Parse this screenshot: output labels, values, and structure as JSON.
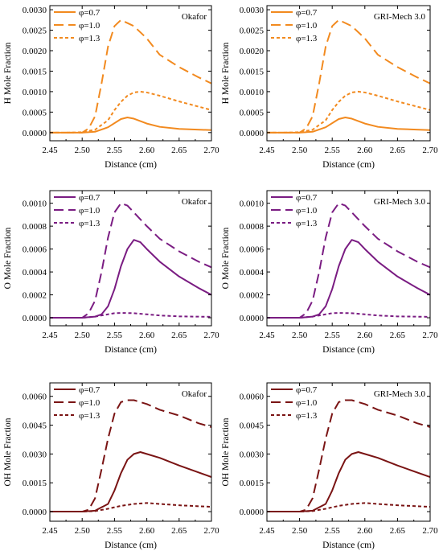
{
  "chart_data": [
    {
      "type": "line",
      "panel": "H",
      "row": 0,
      "col": 0,
      "title": "Okafor",
      "xlabel": "Distance (cm)",
      "ylabel": "H  Mole  Fraction",
      "xlim": [
        2.45,
        2.7
      ],
      "ylim": [
        -0.0002,
        0.0031
      ],
      "xticks": [
        "2.45",
        "2.50",
        "2.55",
        "2.60",
        "2.65",
        "2.70"
      ],
      "yticks": [
        "0.0000",
        "0.0005",
        "0.0010",
        "0.0015",
        "0.0020",
        "0.0025",
        "0.0030"
      ],
      "color": "#f28a1f",
      "legend": "top-left",
      "series": [
        {
          "name": "φ=0.7",
          "style": "solid",
          "x": [
            2.45,
            2.5,
            2.52,
            2.54,
            2.56,
            2.57,
            2.58,
            2.6,
            2.62,
            2.65,
            2.7
          ],
          "y": [
            0,
            0,
            2e-05,
            0.00013,
            0.00033,
            0.00037,
            0.00034,
            0.00022,
            0.00014,
            9e-05,
            6e-05
          ]
        },
        {
          "name": "φ=1.0",
          "style": "dashed",
          "x": [
            2.45,
            2.5,
            2.51,
            2.52,
            2.53,
            2.54,
            2.55,
            2.56,
            2.58,
            2.6,
            2.62,
            2.65,
            2.68,
            2.7
          ],
          "y": [
            0,
            0,
            0.0001,
            0.0004,
            0.0012,
            0.0021,
            0.0026,
            0.00275,
            0.0026,
            0.0023,
            0.0019,
            0.0016,
            0.00135,
            0.0012
          ]
        },
        {
          "name": "φ=1.3",
          "style": "dotted",
          "x": [
            2.45,
            2.48,
            2.5,
            2.52,
            2.54,
            2.55,
            2.56,
            2.57,
            2.58,
            2.59,
            2.6,
            2.62,
            2.65,
            2.7
          ],
          "y": [
            0,
            0,
            1e-05,
            7e-05,
            0.0003,
            0.00055,
            0.00075,
            0.0009,
            0.00098,
            0.001,
            0.00098,
            0.0009,
            0.00076,
            0.00055
          ]
        }
      ]
    },
    {
      "type": "line",
      "panel": "H",
      "row": 0,
      "col": 1,
      "title": "GRI-Mech 3.0",
      "xlabel": "Distance (cm)",
      "ylabel": "H  Mole  Fraction",
      "xlim": [
        2.45,
        2.7
      ],
      "ylim": [
        -0.0002,
        0.0031
      ],
      "xticks": [
        "2.45",
        "2.50",
        "2.55",
        "2.60",
        "2.65",
        "2.70"
      ],
      "yticks": [
        "0.0000",
        "0.0005",
        "0.0010",
        "0.0015",
        "0.0020",
        "0.0025",
        "0.0030"
      ],
      "color": "#f28a1f",
      "legend": "top-left",
      "series": [
        {
          "name": "φ=0.7",
          "style": "solid",
          "x": [
            2.45,
            2.5,
            2.52,
            2.54,
            2.56,
            2.57,
            2.58,
            2.6,
            2.62,
            2.65,
            2.7
          ],
          "y": [
            0,
            0,
            2e-05,
            0.00013,
            0.00033,
            0.00037,
            0.00034,
            0.00022,
            0.00014,
            9e-05,
            6e-05
          ]
        },
        {
          "name": "φ=1.0",
          "style": "dashed",
          "x": [
            2.45,
            2.5,
            2.51,
            2.52,
            2.53,
            2.54,
            2.55,
            2.56,
            2.58,
            2.6,
            2.62,
            2.65,
            2.68,
            2.7
          ],
          "y": [
            0,
            0,
            0.0001,
            0.0004,
            0.0012,
            0.0021,
            0.0026,
            0.00275,
            0.0026,
            0.0023,
            0.0019,
            0.0016,
            0.00135,
            0.0012
          ]
        },
        {
          "name": "φ=1.3",
          "style": "dotted",
          "x": [
            2.45,
            2.48,
            2.5,
            2.52,
            2.54,
            2.55,
            2.56,
            2.57,
            2.58,
            2.59,
            2.6,
            2.62,
            2.65,
            2.7
          ],
          "y": [
            0,
            0,
            1e-05,
            7e-05,
            0.0003,
            0.00055,
            0.00075,
            0.0009,
            0.00098,
            0.001,
            0.00098,
            0.0009,
            0.00076,
            0.00055
          ]
        }
      ]
    },
    {
      "type": "line",
      "panel": "O",
      "row": 1,
      "col": 0,
      "title": "Okafor",
      "xlabel": "Distance (cm)",
      "ylabel": "O  Mole  Fraction",
      "xlim": [
        2.45,
        2.7
      ],
      "ylim": [
        -7e-05,
        0.00111
      ],
      "xticks": [
        "2.45",
        "2.50",
        "2.55",
        "2.60",
        "2.65",
        "2.70"
      ],
      "yticks": [
        "0.0000",
        "0.0002",
        "0.0004",
        "0.0006",
        "0.0008",
        "0.0010"
      ],
      "color": "#7a1c82",
      "legend": "top-left",
      "series": [
        {
          "name": "φ=0.7",
          "style": "solid",
          "x": [
            2.45,
            2.5,
            2.52,
            2.53,
            2.54,
            2.55,
            2.56,
            2.57,
            2.58,
            2.59,
            2.6,
            2.62,
            2.65,
            2.68,
            2.7
          ],
          "y": [
            0,
            0,
            1e-05,
            3e-05,
            0.0001,
            0.00025,
            0.00045,
            0.0006,
            0.00068,
            0.00066,
            0.0006,
            0.00049,
            0.00036,
            0.00026,
            0.0002
          ]
        },
        {
          "name": "φ=1.0",
          "style": "dashed",
          "x": [
            2.45,
            2.5,
            2.51,
            2.52,
            2.53,
            2.54,
            2.55,
            2.56,
            2.57,
            2.58,
            2.6,
            2.62,
            2.65,
            2.68,
            2.7
          ],
          "y": [
            0,
            0,
            4e-05,
            0.00015,
            0.0004,
            0.0007,
            0.00092,
            0.001,
            0.00098,
            0.00092,
            0.0008,
            0.00069,
            0.00058,
            0.00049,
            0.00044
          ]
        },
        {
          "name": "φ=1.3",
          "style": "dotted",
          "x": [
            2.45,
            2.5,
            2.52,
            2.54,
            2.55,
            2.56,
            2.58,
            2.6,
            2.62,
            2.65,
            2.7
          ],
          "y": [
            0,
            0,
            1e-05,
            3e-05,
            4e-05,
            4.2e-05,
            4e-05,
            3e-05,
            2e-05,
            1.2e-05,
            8e-06
          ]
        }
      ]
    },
    {
      "type": "line",
      "panel": "O",
      "row": 1,
      "col": 1,
      "title": "GRI-Mech 3.0",
      "xlabel": "Distance (cm)",
      "ylabel": "O  Mole  Fraction",
      "xlim": [
        2.45,
        2.7
      ],
      "ylim": [
        -7e-05,
        0.00111
      ],
      "xticks": [
        "2.45",
        "2.50",
        "2.55",
        "2.60",
        "2.65",
        "2.70"
      ],
      "yticks": [
        "0.0000",
        "0.0002",
        "0.0004",
        "0.0006",
        "0.0008",
        "0.0010"
      ],
      "color": "#7a1c82",
      "legend": "top-left",
      "series": [
        {
          "name": "φ=0.7",
          "style": "solid",
          "x": [
            2.45,
            2.5,
            2.52,
            2.53,
            2.54,
            2.55,
            2.56,
            2.57,
            2.58,
            2.59,
            2.6,
            2.62,
            2.65,
            2.68,
            2.7
          ],
          "y": [
            0,
            0,
            1e-05,
            3e-05,
            0.0001,
            0.00025,
            0.00045,
            0.0006,
            0.00068,
            0.00066,
            0.0006,
            0.00049,
            0.00036,
            0.00026,
            0.0002
          ]
        },
        {
          "name": "φ=1.0",
          "style": "dashed",
          "x": [
            2.45,
            2.5,
            2.51,
            2.52,
            2.53,
            2.54,
            2.55,
            2.56,
            2.57,
            2.58,
            2.6,
            2.62,
            2.65,
            2.68,
            2.7
          ],
          "y": [
            0,
            0,
            4e-05,
            0.00015,
            0.0004,
            0.0007,
            0.00092,
            0.001,
            0.00098,
            0.00092,
            0.0008,
            0.00069,
            0.00058,
            0.00049,
            0.00044
          ]
        },
        {
          "name": "φ=1.3",
          "style": "dotted",
          "x": [
            2.45,
            2.5,
            2.52,
            2.54,
            2.55,
            2.56,
            2.58,
            2.6,
            2.62,
            2.65,
            2.7
          ],
          "y": [
            0,
            0,
            1e-05,
            3e-05,
            4e-05,
            4.2e-05,
            4e-05,
            3e-05,
            2e-05,
            1.2e-05,
            8e-06
          ]
        }
      ]
    },
    {
      "type": "line",
      "panel": "OH",
      "row": 2,
      "col": 0,
      "title": "Okafor",
      "xlabel": "Distance (cm)",
      "ylabel": "OH  Mole  Fraction",
      "xlim": [
        2.45,
        2.7
      ],
      "ylim": [
        -0.0005,
        0.0067
      ],
      "xticks": [
        "2.45",
        "2.50",
        "2.55",
        "2.60",
        "2.65",
        "2.70"
      ],
      "yticks": [
        "0.0000",
        "0.0015",
        "0.0030",
        "0.0045",
        "0.0060"
      ],
      "color": "#7a1414",
      "legend": "top-left",
      "series": [
        {
          "name": "φ=0.7",
          "style": "solid",
          "x": [
            2.45,
            2.5,
            2.52,
            2.54,
            2.55,
            2.56,
            2.57,
            2.58,
            2.59,
            2.6,
            2.62,
            2.65,
            2.7
          ],
          "y": [
            0,
            0,
            5e-05,
            0.0004,
            0.0011,
            0.002,
            0.0027,
            0.003,
            0.0031,
            0.003,
            0.0028,
            0.0024,
            0.0018
          ]
        },
        {
          "name": "φ=1.0",
          "style": "dashed",
          "x": [
            2.45,
            2.5,
            2.51,
            2.52,
            2.53,
            2.54,
            2.55,
            2.56,
            2.57,
            2.58,
            2.6,
            2.62,
            2.65,
            2.68,
            2.7
          ],
          "y": [
            0,
            0,
            0.0001,
            0.0007,
            0.0022,
            0.0038,
            0.0051,
            0.0057,
            0.0058,
            0.0058,
            0.0056,
            0.0053,
            0.005,
            0.0046,
            0.0044
          ]
        },
        {
          "name": "φ=1.3",
          "style": "dotted",
          "x": [
            2.45,
            2.5,
            2.52,
            2.54,
            2.56,
            2.58,
            2.6,
            2.62,
            2.65,
            2.7
          ],
          "y": [
            0,
            0,
            3e-05,
            0.00015,
            0.0003,
            0.0004,
            0.00045,
            0.0004,
            0.00033,
            0.00025
          ]
        }
      ]
    },
    {
      "type": "line",
      "panel": "OH",
      "row": 2,
      "col": 1,
      "title": "GRI-Mech 3.0",
      "xlabel": "Distance (cm)",
      "ylabel": "OH  Mole  Fraction",
      "xlim": [
        2.45,
        2.7
      ],
      "ylim": [
        -0.0005,
        0.0067
      ],
      "xticks": [
        "2.45",
        "2.50",
        "2.55",
        "2.60",
        "2.65",
        "2.70"
      ],
      "yticks": [
        "0.0000",
        "0.0015",
        "0.0030",
        "0.0045",
        "0.0060"
      ],
      "color": "#7a1414",
      "legend": "top-left",
      "series": [
        {
          "name": "φ=0.7",
          "style": "solid",
          "x": [
            2.45,
            2.5,
            2.52,
            2.54,
            2.55,
            2.56,
            2.57,
            2.58,
            2.59,
            2.6,
            2.62,
            2.65,
            2.7
          ],
          "y": [
            0,
            0,
            5e-05,
            0.0004,
            0.0011,
            0.002,
            0.0027,
            0.003,
            0.0031,
            0.003,
            0.0028,
            0.0024,
            0.0018
          ]
        },
        {
          "name": "φ=1.0",
          "style": "dashed",
          "x": [
            2.45,
            2.5,
            2.51,
            2.52,
            2.53,
            2.54,
            2.55,
            2.56,
            2.57,
            2.58,
            2.6,
            2.62,
            2.65,
            2.68,
            2.7
          ],
          "y": [
            0,
            0,
            0.0001,
            0.0007,
            0.0022,
            0.0038,
            0.0051,
            0.0057,
            0.0058,
            0.0058,
            0.0056,
            0.0053,
            0.005,
            0.0046,
            0.0044
          ]
        },
        {
          "name": "φ=1.3",
          "style": "dotted",
          "x": [
            2.45,
            2.5,
            2.52,
            2.54,
            2.56,
            2.58,
            2.6,
            2.62,
            2.65,
            2.7
          ],
          "y": [
            0,
            0,
            3e-05,
            0.00015,
            0.0003,
            0.0004,
            0.00045,
            0.0004,
            0.00033,
            0.00025
          ]
        }
      ]
    }
  ]
}
